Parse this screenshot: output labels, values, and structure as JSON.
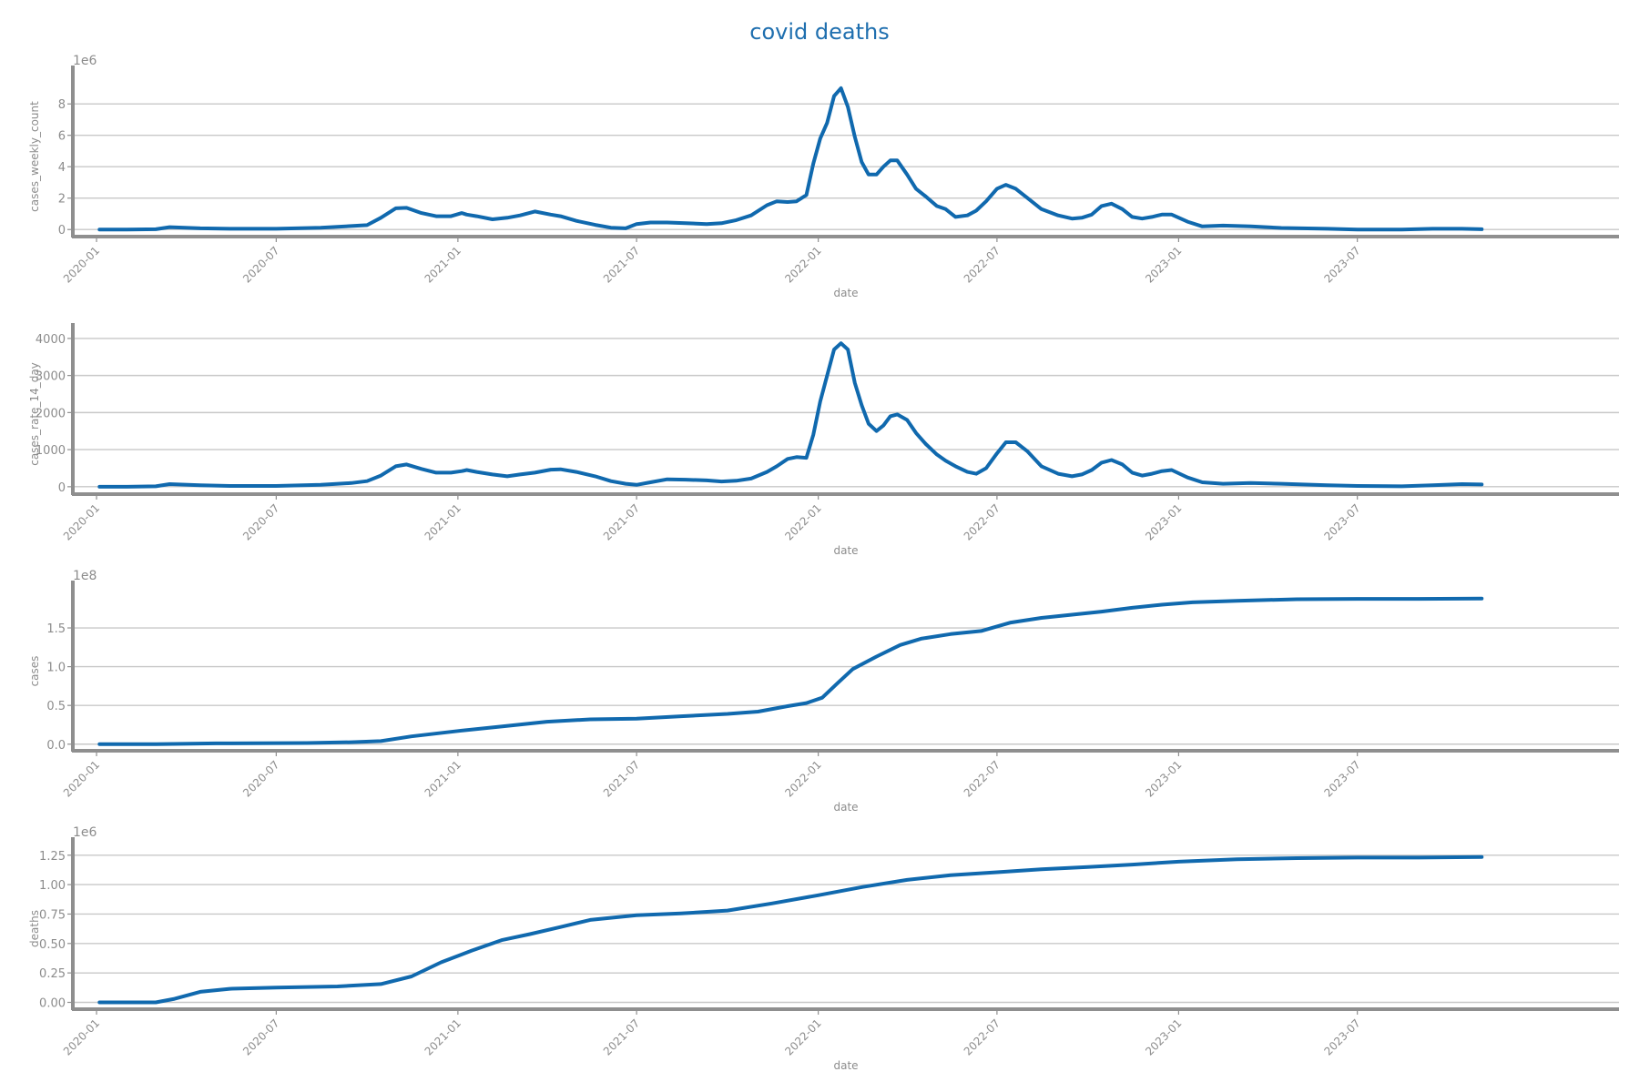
{
  "figure": {
    "title": "covid deaths",
    "title_color": "#1f6faf",
    "line_color": "#1069ae",
    "axis_color": "#8f8f8f",
    "grid_color": "#c8c8c8",
    "text_color": "#8c8c8c"
  },
  "chart_data": [
    {
      "type": "line",
      "xlabel": "date",
      "ylabel": "cases_weekly_count",
      "offset_label": "1e6",
      "x_axis_type": "date",
      "xlim": [
        "2019-12-08",
        "2024-03-22"
      ],
      "ylim": [
        -0.45,
        9.75
      ],
      "grid": "horizontal",
      "x_ticks": [
        "2020-01",
        "2020-07",
        "2021-01",
        "2021-07",
        "2022-01",
        "2022-07",
        "2023-01",
        "2023-07"
      ],
      "y_ticks": [
        0,
        2,
        4,
        6,
        8
      ],
      "y_tick_labels": [
        "0",
        "2",
        "4",
        "6",
        "8"
      ],
      "series": [
        {
          "x": [
            "2020-01-04",
            "2020-02-01",
            "2020-03-01",
            "2020-03-15",
            "2020-04-15",
            "2020-05-15",
            "2020-07-01",
            "2020-08-15",
            "2020-09-15",
            "2020-10-01",
            "2020-10-15",
            "2020-10-30",
            "2020-11-10",
            "2020-11-25",
            "2020-12-10",
            "2020-12-25",
            "2021-01-05",
            "2021-01-10",
            "2021-01-20",
            "2021-02-05",
            "2021-02-20",
            "2021-03-05",
            "2021-03-20",
            "2021-04-05",
            "2021-04-15",
            "2021-05-01",
            "2021-05-20",
            "2021-06-05",
            "2021-06-20",
            "2021-07-01",
            "2021-07-15",
            "2021-08-01",
            "2021-08-20",
            "2021-09-10",
            "2021-09-25",
            "2021-10-10",
            "2021-10-25",
            "2021-11-10",
            "2021-11-20",
            "2021-12-01",
            "2021-12-10",
            "2021-12-20",
            "2021-12-27",
            "2022-01-03",
            "2022-01-10",
            "2022-01-17",
            "2022-01-24",
            "2022-01-31",
            "2022-02-07",
            "2022-02-14",
            "2022-02-21",
            "2022-03-01",
            "2022-03-08",
            "2022-03-15",
            "2022-03-22",
            "2022-04-01",
            "2022-04-10",
            "2022-04-20",
            "2022-05-01",
            "2022-05-10",
            "2022-05-20",
            "2022-06-01",
            "2022-06-10",
            "2022-06-20",
            "2022-07-01",
            "2022-07-10",
            "2022-07-20",
            "2022-08-01",
            "2022-08-15",
            "2022-09-01",
            "2022-09-15",
            "2022-09-25",
            "2022-10-05",
            "2022-10-15",
            "2022-10-25",
            "2022-11-05",
            "2022-11-15",
            "2022-11-25",
            "2022-12-05",
            "2022-12-15",
            "2022-12-25",
            "2023-01-10",
            "2023-01-25",
            "2023-02-15",
            "2023-03-15",
            "2023-04-15",
            "2023-06-01",
            "2023-07-01",
            "2023-08-15",
            "2023-09-15",
            "2023-10-15",
            "2023-11-04"
          ],
          "y": [
            0.0,
            0.0,
            0.02,
            0.15,
            0.08,
            0.05,
            0.05,
            0.12,
            0.22,
            0.28,
            0.75,
            1.35,
            1.38,
            1.05,
            0.85,
            0.85,
            1.05,
            0.95,
            0.85,
            0.65,
            0.75,
            0.9,
            1.15,
            0.95,
            0.85,
            0.55,
            0.3,
            0.12,
            0.08,
            0.35,
            0.45,
            0.45,
            0.4,
            0.35,
            0.4,
            0.6,
            0.9,
            1.55,
            1.8,
            1.75,
            1.8,
            2.2,
            4.2,
            5.8,
            6.8,
            8.5,
            9.0,
            7.8,
            5.9,
            4.3,
            3.5,
            3.5,
            4.0,
            4.4,
            4.4,
            3.5,
            2.6,
            2.1,
            1.5,
            1.3,
            0.8,
            0.9,
            1.2,
            1.8,
            2.6,
            2.85,
            2.6,
            2.0,
            1.3,
            0.9,
            0.7,
            0.75,
            0.95,
            1.5,
            1.65,
            1.3,
            0.8,
            0.7,
            0.8,
            0.95,
            0.95,
            0.5,
            0.2,
            0.25,
            0.2,
            0.1,
            0.05,
            0.0,
            0.0,
            0.05,
            0.05,
            0.02
          ]
        }
      ]
    },
    {
      "type": "line",
      "xlabel": "date",
      "ylabel": "cases_rate_14_day",
      "offset_label": "",
      "x_axis_type": "date",
      "xlim": [
        "2019-12-08",
        "2024-03-22"
      ],
      "ylim": [
        -200,
        4120
      ],
      "grid": "horizontal",
      "x_ticks": [
        "2020-01",
        "2020-07",
        "2021-01",
        "2021-07",
        "2022-01",
        "2022-07",
        "2023-01",
        "2023-07"
      ],
      "y_ticks": [
        0,
        1000,
        2000,
        3000,
        4000
      ],
      "y_tick_labels": [
        "0",
        "1000",
        "2000",
        "3000",
        "4000"
      ],
      "series": [
        {
          "x": [
            "2020-01-04",
            "2020-02-01",
            "2020-03-01",
            "2020-03-15",
            "2020-04-15",
            "2020-05-15",
            "2020-07-01",
            "2020-08-15",
            "2020-09-15",
            "2020-10-01",
            "2020-10-15",
            "2020-10-30",
            "2020-11-10",
            "2020-11-25",
            "2020-12-10",
            "2020-12-25",
            "2021-01-05",
            "2021-01-10",
            "2021-01-20",
            "2021-02-05",
            "2021-02-20",
            "2021-03-05",
            "2021-03-20",
            "2021-04-05",
            "2021-04-15",
            "2021-05-01",
            "2021-05-20",
            "2021-06-05",
            "2021-06-20",
            "2021-07-01",
            "2021-07-15",
            "2021-08-01",
            "2021-08-20",
            "2021-09-10",
            "2021-09-25",
            "2021-10-10",
            "2021-10-25",
            "2021-11-10",
            "2021-11-20",
            "2021-12-01",
            "2021-12-10",
            "2021-12-20",
            "2021-12-27",
            "2022-01-03",
            "2022-01-10",
            "2022-01-17",
            "2022-01-24",
            "2022-01-31",
            "2022-02-07",
            "2022-02-14",
            "2022-02-21",
            "2022-03-01",
            "2022-03-08",
            "2022-03-15",
            "2022-03-22",
            "2022-04-01",
            "2022-04-10",
            "2022-04-20",
            "2022-05-01",
            "2022-05-10",
            "2022-05-20",
            "2022-06-01",
            "2022-06-10",
            "2022-06-20",
            "2022-07-01",
            "2022-07-10",
            "2022-07-20",
            "2022-08-01",
            "2022-08-15",
            "2022-09-01",
            "2022-09-15",
            "2022-09-25",
            "2022-10-05",
            "2022-10-15",
            "2022-10-25",
            "2022-11-05",
            "2022-11-15",
            "2022-11-25",
            "2022-12-05",
            "2022-12-15",
            "2022-12-25",
            "2023-01-10",
            "2023-01-25",
            "2023-02-15",
            "2023-03-15",
            "2023-04-15",
            "2023-06-01",
            "2023-07-01",
            "2023-08-15",
            "2023-09-15",
            "2023-10-15",
            "2023-11-04"
          ],
          "y": [
            0,
            0,
            10,
            70,
            40,
            20,
            20,
            50,
            100,
            150,
            300,
            550,
            600,
            480,
            380,
            380,
            420,
            450,
            400,
            330,
            280,
            330,
            380,
            460,
            470,
            400,
            280,
            150,
            80,
            50,
            120,
            200,
            190,
            170,
            140,
            160,
            220,
            400,
            550,
            750,
            800,
            780,
            1400,
            2300,
            3000,
            3700,
            3870,
            3700,
            2800,
            2200,
            1700,
            1500,
            1650,
            1900,
            1950,
            1800,
            1450,
            1150,
            870,
            700,
            550,
            400,
            350,
            500,
            900,
            1200,
            1200,
            950,
            550,
            350,
            280,
            330,
            450,
            650,
            720,
            600,
            380,
            300,
            350,
            420,
            450,
            250,
            120,
            80,
            100,
            80,
            40,
            20,
            10,
            40,
            70,
            60
          ]
        }
      ]
    },
    {
      "type": "line",
      "xlabel": "date",
      "ylabel": "cases",
      "offset_label": "1e8",
      "x_axis_type": "date",
      "xlim": [
        "2019-12-08",
        "2024-03-22"
      ],
      "ylim": [
        -0.085,
        1.97
      ],
      "grid": "horizontal",
      "x_ticks": [
        "2020-01",
        "2020-07",
        "2021-01",
        "2021-07",
        "2022-01",
        "2022-07",
        "2023-01",
        "2023-07"
      ],
      "y_ticks": [
        0.0,
        0.5,
        1.0,
        1.5
      ],
      "y_tick_labels": [
        "0.0",
        "0.5",
        "1.0",
        "1.5"
      ],
      "series": [
        {
          "x": [
            "2020-01-04",
            "2020-03-01",
            "2020-05-01",
            "2020-08-01",
            "2020-09-15",
            "2020-10-15",
            "2020-11-15",
            "2021-01-01",
            "2021-02-15",
            "2021-04-01",
            "2021-05-15",
            "2021-07-01",
            "2021-08-15",
            "2021-10-01",
            "2021-11-01",
            "2021-12-01",
            "2021-12-20",
            "2022-01-05",
            "2022-01-20",
            "2022-02-05",
            "2022-03-01",
            "2022-03-25",
            "2022-04-15",
            "2022-05-15",
            "2022-06-15",
            "2022-07-15",
            "2022-08-15",
            "2022-09-15",
            "2022-10-15",
            "2022-11-15",
            "2022-12-15",
            "2023-01-15",
            "2023-03-01",
            "2023-05-01",
            "2023-07-01",
            "2023-09-01",
            "2023-11-04"
          ],
          "y": [
            0.0,
            0.0,
            0.01,
            0.015,
            0.025,
            0.04,
            0.1,
            0.17,
            0.23,
            0.29,
            0.32,
            0.33,
            0.36,
            0.39,
            0.42,
            0.49,
            0.53,
            0.6,
            0.78,
            0.97,
            1.13,
            1.28,
            1.36,
            1.42,
            1.46,
            1.57,
            1.63,
            1.67,
            1.71,
            1.76,
            1.8,
            1.83,
            1.85,
            1.87,
            1.875,
            1.875,
            1.88
          ]
        }
      ]
    },
    {
      "type": "line",
      "xlabel": "date",
      "ylabel": "deaths",
      "offset_label": "1e6",
      "x_axis_type": "date",
      "xlim": [
        "2019-12-08",
        "2024-03-22"
      ],
      "ylim": [
        -0.058,
        1.31
      ],
      "grid": "horizontal",
      "x_ticks": [
        "2020-01",
        "2020-07",
        "2021-01",
        "2021-07",
        "2022-01",
        "2022-07",
        "2023-01",
        "2023-07"
      ],
      "y_ticks": [
        0.0,
        0.25,
        0.5,
        0.75,
        1.0,
        1.25
      ],
      "y_tick_labels": [
        "0.00",
        "0.25",
        "0.50",
        "0.75",
        "1.00",
        "1.25"
      ],
      "series": [
        {
          "x": [
            "2020-01-04",
            "2020-03-01",
            "2020-03-20",
            "2020-04-15",
            "2020-05-15",
            "2020-07-01",
            "2020-09-01",
            "2020-10-15",
            "2020-11-15",
            "2020-12-15",
            "2021-01-15",
            "2021-02-15",
            "2021-03-15",
            "2021-04-15",
            "2021-05-15",
            "2021-07-01",
            "2021-08-15",
            "2021-10-01",
            "2021-11-15",
            "2022-01-01",
            "2022-02-15",
            "2022-04-01",
            "2022-05-15",
            "2022-07-01",
            "2022-08-15",
            "2022-10-01",
            "2022-11-15",
            "2023-01-01",
            "2023-03-01",
            "2023-05-01",
            "2023-07-01",
            "2023-09-01",
            "2023-11-04"
          ],
          "y": [
            0.0,
            0.0,
            0.03,
            0.09,
            0.115,
            0.125,
            0.135,
            0.155,
            0.22,
            0.34,
            0.44,
            0.53,
            0.58,
            0.64,
            0.7,
            0.74,
            0.755,
            0.78,
            0.84,
            0.91,
            0.98,
            1.04,
            1.08,
            1.105,
            1.13,
            1.15,
            1.17,
            1.195,
            1.215,
            1.225,
            1.23,
            1.23,
            1.235
          ]
        }
      ]
    }
  ]
}
